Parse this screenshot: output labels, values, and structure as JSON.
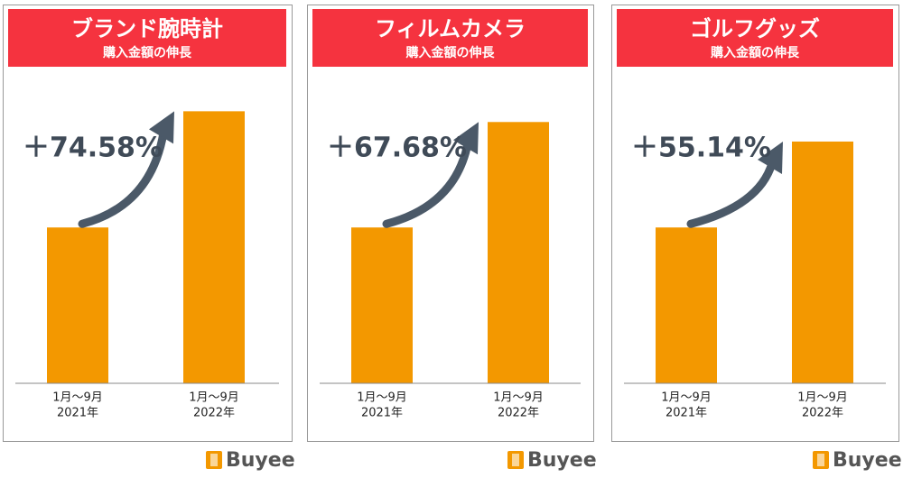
{
  "brand": "Buyee",
  "chart_data": [
    {
      "type": "bar",
      "title": "ブランド腕時計",
      "subtitle": "購入金額の伸長",
      "annotation": "＋74.58%",
      "categories": [
        [
          "1月～9月",
          "2021年"
        ],
        [
          "1月～9月",
          "2022年"
        ]
      ],
      "values": [
        100,
        174.58
      ],
      "color": "#f39800",
      "ylim": [
        0,
        180
      ]
    },
    {
      "type": "bar",
      "title": "フィルムカメラ",
      "subtitle": "購入金額の伸長",
      "annotation": "＋67.68%",
      "categories": [
        [
          "1月～9月",
          "2021年"
        ],
        [
          "1月～9月",
          "2022年"
        ]
      ],
      "values": [
        100,
        167.68
      ],
      "color": "#f39800",
      "ylim": [
        0,
        180
      ]
    },
    {
      "type": "bar",
      "title": "ゴルフグッズ",
      "subtitle": "購入金額の伸長",
      "annotation": "＋55.14%",
      "categories": [
        [
          "1月～9月",
          "2021年"
        ],
        [
          "1月～9月",
          "2022年"
        ]
      ],
      "values": [
        100,
        155.14
      ],
      "color": "#f39800",
      "ylim": [
        0,
        180
      ]
    }
  ]
}
